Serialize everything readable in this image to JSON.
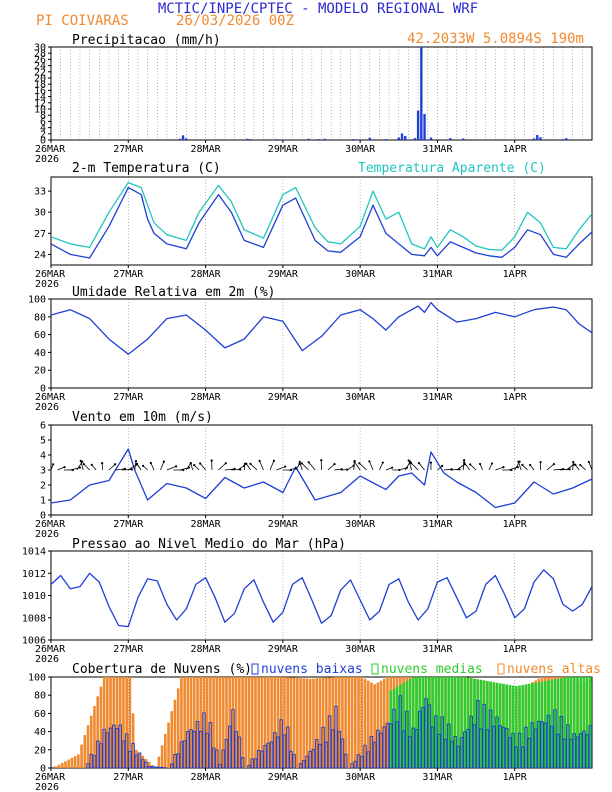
{
  "header": {
    "title": "MCTIC/INPE/CPTEC - MODELO REGIONAL WRF",
    "location": "PI COIVARAS",
    "run": "26/03/2026 00Z",
    "coords": "42.2033W 5.0894S 190m"
  },
  "colors": {
    "blue": "#1f3fd6",
    "cyan": "#1fc6c0",
    "orange": "#f08a30",
    "green": "#2ecc2e",
    "title_blue": "#2a2ad0",
    "grid": "#888888"
  },
  "x_axis": {
    "ticks": [
      "26MAR",
      "27MAR",
      "28MAR",
      "29MAR",
      "30MAR",
      "31MAR",
      "1APR"
    ],
    "year": "2026",
    "hours": 168
  },
  "chart_data": [
    {
      "type": "bar",
      "title": "Precipitacao (mm/h)",
      "ylabel": "mm/h",
      "ylim": [
        0,
        30
      ],
      "yticks": [
        "0",
        "2",
        "4",
        "6",
        "8",
        "10",
        "12",
        "14",
        "16",
        "18",
        "20",
        "22",
        "24",
        "26",
        "28",
        "30"
      ],
      "x": [
        40,
        41,
        42,
        61,
        62,
        70,
        80,
        83,
        85,
        94,
        99,
        104,
        108,
        109,
        110,
        113,
        114,
        115,
        116,
        118,
        124,
        128,
        150,
        151,
        152,
        159,
        160
      ],
      "values": [
        0.4,
        1.5,
        0.5,
        0.4,
        0.3,
        0.3,
        0.4,
        0.3,
        0.4,
        0.3,
        0.7,
        0.3,
        0.8,
        2.1,
        1.3,
        0.6,
        9.5,
        30,
        8.4,
        0.8,
        0.6,
        0.5,
        0.5,
        1.6,
        0.9,
        0.3,
        0.6
      ]
    },
    {
      "type": "line",
      "title": "2-m Temperatura (C)",
      "ylim": [
        22.5,
        35
      ],
      "yticks": [
        "24",
        "27",
        "30",
        "33"
      ],
      "series": [
        {
          "name": "2-m Temperatura (C)",
          "color": "#1f3fd6",
          "x": [
            0,
            6,
            12,
            18,
            24,
            28,
            30,
            32,
            36,
            42,
            46,
            52,
            56,
            60,
            66,
            72,
            76,
            82,
            86,
            90,
            96,
            100,
            104,
            108,
            112,
            116,
            118,
            120,
            124,
            128,
            132,
            136,
            140,
            144,
            148,
            152,
            156,
            160,
            164,
            168
          ],
          "values": [
            25.5,
            24.0,
            23.5,
            28.0,
            33.5,
            32.5,
            29.0,
            27.0,
            25.5,
            24.8,
            28.5,
            32.5,
            30.0,
            26.0,
            25.0,
            31.0,
            32.0,
            26.0,
            24.5,
            24.3,
            26.5,
            31.0,
            27.0,
            25.5,
            24.0,
            23.8,
            25.0,
            23.8,
            25.8,
            25.0,
            24.2,
            23.8,
            23.6,
            25.0,
            27.5,
            26.8,
            24.0,
            23.6,
            25.5,
            27.2
          ]
        },
        {
          "name": "Temperatura Aparente (C)",
          "color": "#1fc6c0",
          "x": [
            0,
            6,
            12,
            18,
            24,
            28,
            30,
            32,
            36,
            42,
            46,
            52,
            56,
            60,
            66,
            72,
            76,
            82,
            86,
            90,
            96,
            100,
            104,
            108,
            112,
            116,
            118,
            120,
            124,
            128,
            132,
            136,
            140,
            144,
            148,
            152,
            156,
            160,
            164,
            168
          ],
          "values": [
            26.5,
            25.5,
            25.0,
            30.0,
            34.2,
            33.5,
            31.0,
            28.5,
            26.8,
            26.0,
            30.0,
            33.8,
            31.5,
            27.5,
            26.3,
            32.5,
            33.5,
            27.8,
            25.8,
            25.5,
            28.0,
            33.0,
            29.0,
            30.0,
            25.5,
            24.8,
            26.5,
            25.0,
            27.5,
            26.5,
            25.2,
            24.7,
            24.6,
            26.5,
            30.0,
            28.5,
            25.0,
            24.8,
            27.5,
            29.8
          ]
        }
      ]
    },
    {
      "type": "line",
      "title": "Umidade Relativa em 2m (%)",
      "ylim": [
        0,
        100
      ],
      "yticks": [
        "0",
        "20",
        "40",
        "60",
        "80",
        "100"
      ],
      "series": [
        {
          "name": "Umidade Relativa",
          "color": "#1f3fd6",
          "x": [
            0,
            6,
            12,
            18,
            24,
            30,
            36,
            42,
            48,
            54,
            60,
            66,
            72,
            78,
            84,
            90,
            96,
            100,
            104,
            108,
            112,
            114,
            116,
            118,
            120,
            126,
            132,
            138,
            144,
            150,
            156,
            160,
            164,
            168
          ],
          "values": [
            82,
            88,
            78,
            55,
            38,
            55,
            78,
            82,
            65,
            45,
            55,
            80,
            75,
            42,
            58,
            82,
            88,
            78,
            65,
            80,
            88,
            92,
            85,
            96,
            88,
            74,
            78,
            85,
            80,
            88,
            91,
            88,
            72,
            62
          ]
        }
      ]
    },
    {
      "type": "line",
      "title": "Vento em 10m (m/s)",
      "ylim": [
        0,
        6
      ],
      "yticks": [
        "0",
        "1",
        "2",
        "3",
        "4",
        "5",
        "6"
      ],
      "series": [
        {
          "name": "Vento em 10m",
          "color": "#1f3fd6",
          "x": [
            0,
            6,
            12,
            18,
            24,
            26,
            30,
            36,
            42,
            48,
            54,
            60,
            66,
            72,
            76,
            82,
            90,
            96,
            104,
            108,
            112,
            116,
            118,
            122,
            126,
            132,
            138,
            144,
            150,
            156,
            162,
            168
          ],
          "values": [
            0.8,
            1.0,
            2.0,
            2.3,
            4.4,
            3.0,
            1.0,
            2.1,
            1.8,
            1.1,
            2.5,
            1.8,
            2.2,
            1.5,
            3.2,
            1.0,
            1.5,
            2.6,
            1.7,
            2.6,
            2.8,
            2.0,
            4.2,
            2.8,
            2.2,
            1.5,
            0.5,
            0.8,
            2.2,
            1.4,
            1.8,
            2.4
          ]
        }
      ],
      "barbs_note": "wind direction arrows along y≈3"
    },
    {
      "type": "line",
      "title": "Pressao ao Nivel Medio do Mar (hPa)",
      "ylim": [
        1006,
        1014
      ],
      "yticks": [
        "1006",
        "1008",
        "1010",
        "1012",
        "1014"
      ],
      "series": [
        {
          "name": "Pressao",
          "color": "#1f3fd6",
          "x": [
            0,
            3,
            6,
            9,
            12,
            15,
            18,
            21,
            24,
            27,
            30,
            33,
            36,
            39,
            42,
            45,
            48,
            51,
            54,
            57,
            60,
            63,
            66,
            69,
            72,
            75,
            78,
            81,
            84,
            87,
            90,
            93,
            96,
            99,
            102,
            105,
            108,
            111,
            114,
            117,
            120,
            123,
            126,
            129,
            132,
            135,
            138,
            141,
            144,
            147,
            150,
            153,
            156,
            159,
            162,
            165,
            168
          ],
          "values": [
            1011.0,
            1011.8,
            1010.6,
            1010.8,
            1012.0,
            1011.2,
            1009.0,
            1007.3,
            1007.2,
            1009.8,
            1011.5,
            1011.3,
            1009.2,
            1007.8,
            1008.8,
            1011.0,
            1011.6,
            1009.8,
            1007.6,
            1008.4,
            1010.6,
            1011.4,
            1009.4,
            1007.6,
            1008.5,
            1011.0,
            1011.6,
            1009.6,
            1007.5,
            1008.2,
            1010.5,
            1011.4,
            1009.6,
            1007.8,
            1008.6,
            1011.0,
            1011.5,
            1009.4,
            1007.8,
            1008.8,
            1011.2,
            1011.6,
            1009.8,
            1008.0,
            1008.6,
            1011.0,
            1011.8,
            1010.0,
            1008.0,
            1008.8,
            1011.2,
            1012.3,
            1011.5,
            1009.2,
            1008.6,
            1009.2,
            1010.8
          ]
        }
      ]
    },
    {
      "type": "bar",
      "title": "Cobertura de Nuvens (%)",
      "ylim": [
        0,
        100
      ],
      "yticks": [
        "0",
        "20",
        "40",
        "60",
        "80",
        "100"
      ],
      "legend": [
        "nuvens baixas",
        "nuvens medias",
        "nuvens altas"
      ],
      "series": [
        {
          "name": "nuvens altas",
          "color": "#f08a30",
          "x": [
            0,
            8,
            16,
            24,
            26,
            32,
            40,
            48,
            56,
            64,
            72,
            80,
            88,
            96,
            100,
            104,
            112,
            120,
            128,
            136,
            144,
            152,
            160,
            164
          ],
          "values": [
            0,
            15,
            100,
            100,
            20,
            0,
            100,
            100,
            100,
            100,
            100,
            98,
            100,
            100,
            92,
            100,
            100,
            100,
            100,
            95,
            85,
            100,
            100,
            95
          ]
        },
        {
          "name": "nuvens medias",
          "color": "#2ecc2e",
          "x": [
            0,
            104,
            105,
            112,
            120,
            128,
            136,
            144,
            152,
            160,
            167
          ],
          "values": [
            0,
            0,
            85,
            100,
            100,
            100,
            95,
            90,
            95,
            100,
            100
          ]
        },
        {
          "name": "nuvens baixas",
          "color": "#1f3fd6",
          "x": [
            0,
            10,
            16,
            20,
            24,
            30,
            36,
            42,
            44,
            48,
            52,
            56,
            60,
            64,
            68,
            72,
            76,
            80,
            84,
            88,
            92,
            96,
            100,
            104,
            108,
            112,
            116,
            118,
            122,
            126,
            132,
            138,
            144,
            150,
            156,
            162,
            168
          ],
          "values": [
            0,
            0,
            45,
            55,
            32,
            2,
            0,
            45,
            50,
            65,
            5,
            70,
            0,
            20,
            35,
            60,
            0,
            20,
            45,
            70,
            0,
            20,
            40,
            55,
            80,
            45,
            90,
            60,
            55,
            30,
            75,
            60,
            35,
            55,
            65,
            40,
            50
          ]
        }
      ]
    }
  ]
}
